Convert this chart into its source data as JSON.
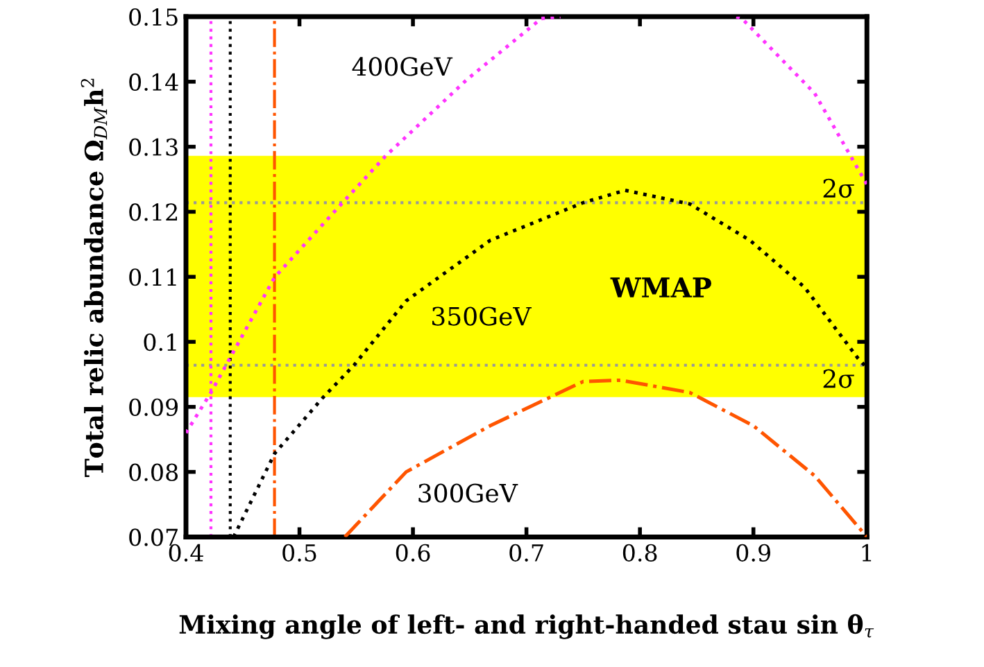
{
  "chart_data": {
    "type": "line",
    "xlabel": "Mixing angle of left- and right-handed stau sin θ$_{τ}$",
    "ylabel": "Total relic abundance Ω$_{DM}$h$^{2}$",
    "xlim": [
      0.4,
      1.0
    ],
    "ylim": [
      0.07,
      0.15
    ],
    "xticks": [
      0.4,
      0.5,
      0.6,
      0.7,
      0.8,
      0.9,
      1
    ],
    "yticks": [
      0.07,
      0.08,
      0.09,
      0.1,
      0.11,
      0.12,
      0.13,
      0.14,
      0.15
    ],
    "grid": false,
    "legend": false,
    "series": [
      {
        "color": "#ff33ff",
        "line_style": "dotted",
        "x": [
          0.4,
          0.422,
          0.478,
          0.538,
          0.576,
          0.648,
          0.713,
          0.73
        ],
        "values": [
          0.086,
          0.0922,
          0.1099,
          0.1214,
          0.1286,
          0.1404,
          0.1497,
          0.15
        ]
      },
      {
        "color": "#ff33ff",
        "line_style": "dotted",
        "x": [
          0.885,
          0.89,
          0.954,
          1.0
        ],
        "values": [
          0.15,
          0.1497,
          0.1382,
          0.1242
        ]
      },
      {
        "color": "#000000",
        "line_style": "dotted",
        "x": [
          0.442,
          0.478,
          0.52,
          0.548,
          0.594,
          0.668,
          0.75,
          0.787,
          0.844,
          0.897,
          0.945,
          0.992,
          1.0
        ],
        "values": [
          0.07,
          0.0828,
          0.0913,
          0.0964,
          0.1063,
          0.1156,
          0.1214,
          0.1233,
          0.1212,
          0.1156,
          0.1084,
          0.0975,
          0.096
        ]
      },
      {
        "color": "#ff5500",
        "line_style": "dashdot",
        "x": [
          0.54,
          0.594,
          0.668,
          0.75,
          0.783,
          0.844,
          0.9,
          0.954,
          1.0
        ],
        "values": [
          0.07,
          0.08,
          0.0871,
          0.0939,
          0.0941,
          0.0922,
          0.0871,
          0.0794,
          0.07
        ]
      }
    ],
    "bands": [
      {
        "axis": "y",
        "from": 0.0915,
        "to": 0.1286,
        "color": "#ffff00"
      }
    ],
    "ref_lines": [
      {
        "axis": "y",
        "value": 0.1214,
        "color": "#999999",
        "line_style": "dotted"
      },
      {
        "axis": "y",
        "value": 0.0964,
        "color": "#999999",
        "line_style": "dotted"
      },
      {
        "axis": "x",
        "value": 0.422,
        "color": "#ff33ff",
        "line_style": "dotted"
      },
      {
        "axis": "x",
        "value": 0.439,
        "color": "#000000",
        "line_style": "dotted"
      },
      {
        "axis": "x",
        "value": 0.478,
        "color": "#ff5500",
        "line_style": "dashdot"
      }
    ],
    "annotations": [
      "400GeV",
      "350GeV",
      "300GeV",
      "WMAP",
      "2σ",
      "2σ"
    ]
  }
}
